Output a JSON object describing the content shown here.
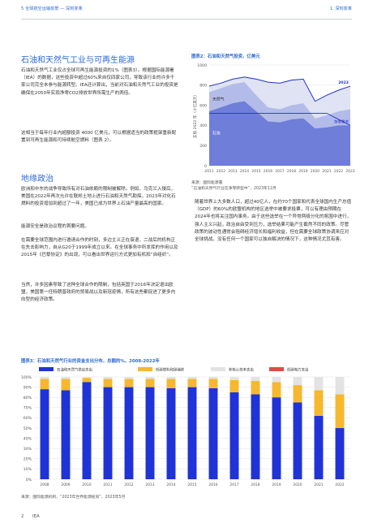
{
  "header": {
    "left": "5 全球航空运输前景 — 深刻变革",
    "right": "1. 深刻变革"
  },
  "section1": {
    "heading": "石油和天然气工业与可再生能源",
    "para1": "石油和天然气工业仅占全球可再生能源投资的1%（图表3）。根据国际能源署（IEA）的数据，这些投资中超过60%来自仅四家公司，导致该行业的许多千家公司完全未参与能源转型。IEA还计算出，当前对石油和天然气工业的投资是确保在2050年实现净零CO2排放世界所需生产的两倍。",
    "para2": "这相当于每年行业内超额投资 4000 亿美元，可以根据适当的政策框架重新配置到可再生能源和可持续航空燃料（图表 2）。"
  },
  "section2": {
    "heading": "地缘政治",
    "para1": "欧洲和中东的战争导致所有对石油依赖的限制被解除。例如，乌克兰入侵后，美国在2022年再次允许在联邦土地上进行石油和天然气勘探。2023年对化石燃料的投资增加到超过了一年，美国已成为世界上石油产量最高的国家。",
    "para2": "能源安全是政治议程的首要问题。",
    "para3": "在需要全球范围内进行邀请合作的时刻，多边主义正在衰退，二战后的机构正在失去影响力，自从G20于1999年成立以来。在全球事务中所发挥的作用以及2015年《巴黎协定》的出现，可以看出世界运行方式更加有机和“自组织”。",
    "para4": "当然，许多因素导致了这种全球合作的限制，包括英国于2016年决定退出欧盟，美国第一任特朗普政府的贸易战以及新冠疫情，所有这些都促进了更多内向型的经济政策。"
  },
  "right_col": {
    "para1": "随着世界上大多数人口，超过40亿人，在约70个国家和代表全球国内生产总值（GDP）的60%的欧盟机构的地区选举中被要求投票，可以有理由预期在2024年也将关注国内事务。由于这些选举在一个异常两极分化的氛围中进行，强人主义兴起，政治自由受到压力，选举结果可能产生截然不同的政策。尽管政策的波动性通常会阻碍经济增长和福利收益，但在需要全球政策协调来应对全球挑战，没有任何一个国家可以独自解决的情况下，这种情况尤其有害。"
  },
  "figure2": {
    "title": "图表2：石油和天然气投资，亿美元",
    "source_line1": "来源：国际能源署",
    "source_line2": "“石油和天然气行业在净零转型中”，2023年12月",
    "chart_data": {
      "type": "area",
      "title": "图表2：石油和天然气投资，亿美元",
      "ylabel": "实际 2022 年（十亿美元）",
      "ylim": [
        0,
        1000
      ],
      "yticks": [
        0,
        200,
        400,
        600,
        800,
        1000
      ],
      "x": [
        "2011",
        "2012",
        "2013",
        "2014",
        "2015",
        "2016",
        "2017",
        "2018",
        "2019",
        "2020",
        "2021",
        "2022",
        "2023"
      ],
      "series": [
        {
          "name": "石油",
          "values": [
            540,
            580,
            620,
            640,
            540,
            440,
            430,
            460,
            470,
            370,
            380,
            400,
            400
          ]
        },
        {
          "name": "天然气",
          "values": [
            730,
            770,
            810,
            830,
            700,
            580,
            560,
            600,
            620,
            470,
            500,
            540,
            560
          ]
        }
      ],
      "reference_lines": [
        {
          "label": "2023",
          "values": [
            790,
            820,
            860,
            880,
            860,
            830,
            820,
            850,
            860,
            640,
            700,
            750,
            790
          ]
        },
        {
          "label": "净零需求",
          "values": [
            520,
            520,
            520,
            520,
            520,
            520,
            520,
            520,
            520,
            520,
            520,
            460,
            400
          ]
        }
      ],
      "grid": true
    }
  },
  "figure3": {
    "title": "图表3：石油和天然气行业的资金支出分布，总额的%，2008-2022年",
    "source": "来源：国际能源机构，“2023年世界能源投资”，2023年5月",
    "chart_data": {
      "type": "bar",
      "stacked": true,
      "categories": [
        "2008",
        "2009",
        "2010",
        "2011",
        "2012",
        "2013",
        "2014",
        "2015",
        "2016",
        "2017",
        "2018",
        "2019",
        "2020",
        "2021",
        "2022"
      ],
      "ylim": [
        0,
        100
      ],
      "yticks": [
        "0%",
        "10%",
        "20%",
        "30%",
        "40%",
        "50%",
        "60%",
        "70%",
        "80%",
        "90%",
        "100%"
      ],
      "series": [
        {
          "name": "石油和天然气供应支出",
          "color": "#1f33d6",
          "values": [
            88,
            87,
            95,
            90,
            90,
            90,
            89,
            90,
            89,
            85,
            83,
            80,
            75,
            62,
            50
          ]
        },
        {
          "name": "低碳燃料和碳捕获",
          "color": "#f5b82e",
          "values": [
            10,
            11,
            4,
            8,
            8,
            8,
            9,
            8,
            9,
            12,
            13,
            15,
            17,
            25,
            33
          ]
        },
        {
          "name": "非核心资本支出",
          "color": "#e3e3e3",
          "values": [
            2,
            2,
            1,
            2,
            2,
            2,
            2,
            2,
            2,
            3,
            4,
            5,
            8,
            13,
            17
          ]
        },
        {
          "name": "低碳电力支出",
          "color": "#d94f46",
          "values": [
            0,
            0,
            0,
            0,
            0,
            0,
            0,
            0,
            0,
            0,
            0,
            0,
            0,
            0,
            0
          ]
        }
      ],
      "grid": true,
      "legend": "top"
    }
  },
  "footer": {
    "page": "2",
    "org": "IEA"
  }
}
